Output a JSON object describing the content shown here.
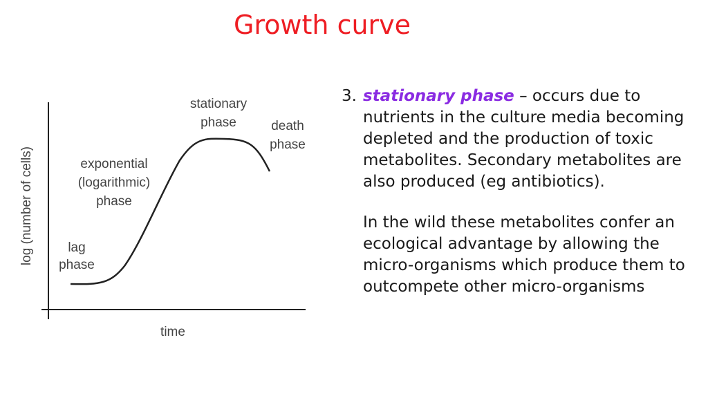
{
  "slide": {
    "title": "Growth curve"
  },
  "diagram": {
    "y_axis_label": "log (number of cells)",
    "x_axis_label": "time",
    "phases": {
      "lag": [
        "lag",
        "phase"
      ],
      "exponential": [
        "exponential",
        "(logarithmic)",
        "phase"
      ],
      "stationary": [
        "stationary",
        "phase"
      ],
      "death": [
        "death",
        "phase"
      ]
    }
  },
  "text": {
    "item_number": "3.",
    "keyword": "stationary phase",
    "point_body": " – occurs due to nutrients in the culture media becoming depleted and the production of toxic metabolites. Secondary metabolites are also produced (eg antibiotics).",
    "paragraph2": "In the wild these metabolites confer an ecological advantage by allowing the micro-organisms which produce them to outcompete other micro-organisms"
  },
  "colors": {
    "title": "#ee1d23",
    "keyword": "#8a2be2",
    "body_text": "#1a1a1a",
    "graph_lines": "#222222",
    "graph_labels": "#444444"
  }
}
